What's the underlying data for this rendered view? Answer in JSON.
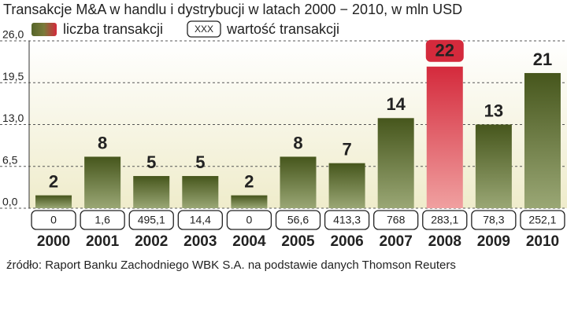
{
  "chart_data": {
    "type": "bar",
    "title": "Transakcje M&A w handlu i dystrybucji w latach 2000 − 2010, w mln USD",
    "categories": [
      "2000",
      "2001",
      "2002",
      "2003",
      "2004",
      "2005",
      "2006",
      "2007",
      "2008",
      "2009",
      "2010"
    ],
    "series": [
      {
        "name": "liczba transakcji",
        "color": "#55652a",
        "values": [
          2,
          8,
          5,
          5,
          2,
          8,
          7,
          14,
          22,
          13,
          21
        ]
      },
      {
        "name": "wartość transakcji",
        "values": [
          0,
          1.6,
          495.1,
          14.4,
          0,
          56.6,
          413.3,
          768,
          283.1,
          78.3,
          252.1
        ],
        "value_labels": [
          "0",
          "1,6",
          "495,1",
          "14,4",
          "0",
          "56,6",
          "413,3",
          "768",
          "283,1",
          "78,3",
          "252,1"
        ]
      }
    ],
    "legend_sample": "XXX",
    "highlight_category": "2008",
    "highlight_color": "#d42a3c",
    "ylim": [
      0,
      26
    ],
    "yticks": [
      {
        "value": 0,
        "label": "0,0"
      },
      {
        "value": 6.5,
        "label": "6,5"
      },
      {
        "value": 13,
        "label": "13,0"
      },
      {
        "value": 19.5,
        "label": "19,5"
      },
      {
        "value": 26,
        "label": "26,0"
      }
    ],
    "grid": true,
    "source": "źródło: Raport Banku Zachodniego WBK S.A. na podstawie danych Thomson Reuters"
  }
}
